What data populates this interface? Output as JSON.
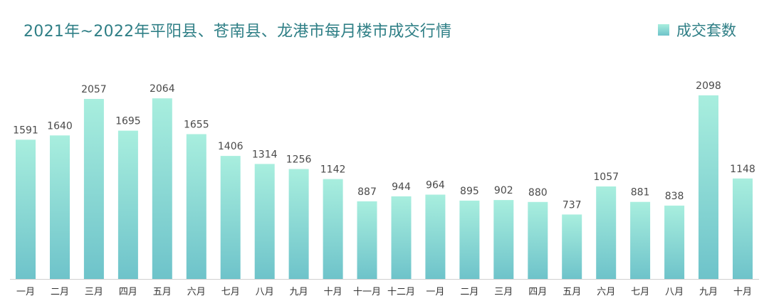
{
  "colors": {
    "title": "#2f7f86",
    "bar_top": "#a8eede",
    "bar_bottom": "#6ec3ca",
    "axis": "#d0d0d0",
    "value_label": "#4a4a4a",
    "tick_label": "#333333"
  },
  "chart_data": {
    "type": "bar",
    "title": "2021年~2022年平阳县、苍南县、龙港市每月楼市成交行情",
    "xlabel": "",
    "ylabel": "",
    "legend": {
      "position": "top-right",
      "labels": [
        "成交套数"
      ]
    },
    "grid": false,
    "ylim": [
      0,
      2200
    ],
    "categories": [
      "一月",
      "二月",
      "三月",
      "四月",
      "五月",
      "六月",
      "七月",
      "八月",
      "九月",
      "十月",
      "十一月",
      "十二月",
      "一月",
      "二月",
      "三月",
      "四月",
      "五月",
      "六月",
      "七月",
      "八月",
      "九月",
      "十月"
    ],
    "series": [
      {
        "name": "成交套数",
        "values": [
          1591,
          1640,
          2057,
          1695,
          2064,
          1655,
          1406,
          1314,
          1256,
          1142,
          887,
          944,
          964,
          895,
          902,
          880,
          737,
          1057,
          881,
          838,
          2098,
          1148
        ]
      }
    ]
  }
}
